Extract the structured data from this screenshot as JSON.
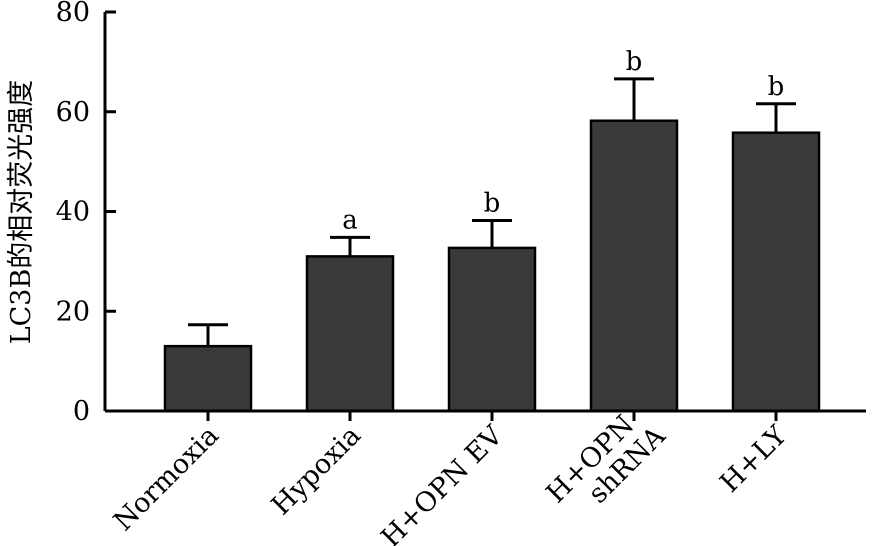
{
  "chart_data": {
    "type": "bar",
    "title": "",
    "xlabel": "",
    "ylabel": "LC3B的相对荧光强度",
    "ylim": [
      0,
      80
    ],
    "yticks": [
      0,
      20,
      40,
      60,
      80
    ],
    "grid": false,
    "legend": "none",
    "bar_color": "#3a3a3a",
    "categories": [
      {
        "label": [
          "Normoxia"
        ],
        "value": 13,
        "error": 4.3,
        "sig": ""
      },
      {
        "label": [
          "Hypoxia"
        ],
        "value": 31,
        "error": 3.8,
        "sig": "a"
      },
      {
        "label": [
          "H+OPN EV"
        ],
        "value": 32.7,
        "error": 5.5,
        "sig": "b"
      },
      {
        "label": [
          "H+OPN",
          "shRNA"
        ],
        "value": 58.2,
        "error": 8.4,
        "sig": "b"
      },
      {
        "label": [
          "H+LY"
        ],
        "value": 55.8,
        "error": 5.8,
        "sig": "b"
      }
    ]
  }
}
